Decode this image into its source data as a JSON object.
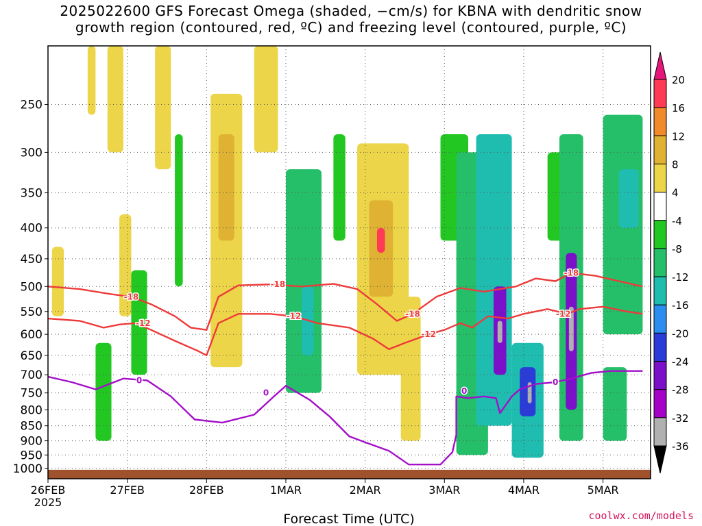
{
  "title_line1": "2025022600 GFS Forecast Omega (shaded, −cm/s) for KBNA with dendritic snow",
  "title_line2": "growth region (contoured, red, ºC) and freezing level (contoured, purple, ºC)",
  "credit": "coolwx.com/models",
  "chart_data": {
    "type": "heatmap",
    "title": "2025022600 GFS Forecast Omega (shaded, −cm/s) for KBNA with dendritic snow growth region (contoured, red, ºC) and freezing level (contoured, purple, ºC)",
    "xlabel": "Forecast Time (UTC)",
    "ylabel": "",
    "x_unit": "days since 26FEB 2025 00Z",
    "xlim": [
      0,
      7.6
    ],
    "x_ticks": [
      {
        "x": 0,
        "label": "26FEB",
        "sublabel": "2025"
      },
      {
        "x": 1,
        "label": "27FEB"
      },
      {
        "x": 2,
        "label": "28FEB"
      },
      {
        "x": 3,
        "label": "1MAR"
      },
      {
        "x": 4,
        "label": "2MAR"
      },
      {
        "x": 5,
        "label": "3MAR"
      },
      {
        "x": 6,
        "label": "4MAR"
      },
      {
        "x": 7,
        "label": "5MAR"
      }
    ],
    "y_scale": "log-pressure",
    "ylim": [
      1040,
      200
    ],
    "y_ticks": [
      250,
      300,
      350,
      400,
      450,
      500,
      550,
      600,
      650,
      700,
      750,
      800,
      850,
      900,
      950,
      1000
    ],
    "grid": true,
    "colorbar": {
      "levels": [
        20,
        16,
        12,
        8,
        4,
        -4,
        -8,
        -12,
        -16,
        -20,
        -24,
        -28,
        -32,
        -36
      ],
      "colors": [
        "#ff3a55",
        "#f08a2a",
        "#e0b233",
        "#ecd548",
        "#ffffff",
        "#22c722",
        "#25bf6a",
        "#1fbdb0",
        "#2a8ef0",
        "#2a3bd8",
        "#7a10c8",
        "#a400c8",
        "#b0b0b0"
      ],
      "over_color": "#e6167a",
      "under_color": "#000000"
    },
    "shaded_regions": [
      {
        "x": [
          0.05,
          0.2
        ],
        "p": [
          430,
          560
        ],
        "value": 6
      },
      {
        "x": [
          0.5,
          0.6
        ],
        "p": [
          200,
          260
        ],
        "value": 5
      },
      {
        "x": [
          0.75,
          0.95
        ],
        "p": [
          200,
          300
        ],
        "value": 5
      },
      {
        "x": [
          0.6,
          0.8
        ],
        "p": [
          620,
          900
        ],
        "value": -6
      },
      {
        "x": [
          0.9,
          1.05
        ],
        "p": [
          380,
          560
        ],
        "value": 6
      },
      {
        "x": [
          1.05,
          1.25
        ],
        "p": [
          470,
          700
        ],
        "value": -7
      },
      {
        "x": [
          1.35,
          1.55
        ],
        "p": [
          200,
          320
        ],
        "value": 5
      },
      {
        "x": [
          1.6,
          1.7
        ],
        "p": [
          280,
          500
        ],
        "value": -6
      },
      {
        "x": [
          2.05,
          2.45
        ],
        "p": [
          240,
          680
        ],
        "value": 6
      },
      {
        "x": [
          2.15,
          2.35
        ],
        "p": [
          280,
          420
        ],
        "value": 10
      },
      {
        "x": [
          2.6,
          2.9
        ],
        "p": [
          200,
          300
        ],
        "value": 5
      },
      {
        "x": [
          3.0,
          3.45
        ],
        "p": [
          320,
          750
        ],
        "value": -8
      },
      {
        "x": [
          3.2,
          3.35
        ],
        "p": [
          500,
          650
        ],
        "value": -13
      },
      {
        "x": [
          3.6,
          3.75
        ],
        "p": [
          280,
          420
        ],
        "value": -6
      },
      {
        "x": [
          3.9,
          4.55
        ],
        "p": [
          290,
          700
        ],
        "value": 6
      },
      {
        "x": [
          4.05,
          4.35
        ],
        "p": [
          360,
          520
        ],
        "value": 10
      },
      {
        "x": [
          4.15,
          4.25
        ],
        "p": [
          400,
          440
        ],
        "value": 18
      },
      {
        "x": [
          4.45,
          4.7
        ],
        "p": [
          520,
          900
        ],
        "value": 5
      },
      {
        "x": [
          4.95,
          5.3
        ],
        "p": [
          280,
          420
        ],
        "value": -7
      },
      {
        "x": [
          5.15,
          5.55
        ],
        "p": [
          300,
          950
        ],
        "value": -8
      },
      {
        "x": [
          5.4,
          5.85
        ],
        "p": [
          280,
          850
        ],
        "value": -14
      },
      {
        "x": [
          5.62,
          5.78
        ],
        "p": [
          500,
          700
        ],
        "value": -25
      },
      {
        "x": [
          5.67,
          5.73
        ],
        "p": [
          570,
          620
        ],
        "value": -33
      },
      {
        "x": [
          5.85,
          6.25
        ],
        "p": [
          620,
          960
        ],
        "value": -12
      },
      {
        "x": [
          5.95,
          6.15
        ],
        "p": [
          680,
          820
        ],
        "value": -22
      },
      {
        "x": [
          6.05,
          6.1
        ],
        "p": [
          720,
          780
        ],
        "value": -33
      },
      {
        "x": [
          6.3,
          6.55
        ],
        "p": [
          300,
          420
        ],
        "value": -7
      },
      {
        "x": [
          6.45,
          6.75
        ],
        "p": [
          280,
          900
        ],
        "value": -10
      },
      {
        "x": [
          6.53,
          6.67
        ],
        "p": [
          440,
          800
        ],
        "value": -26
      },
      {
        "x": [
          6.57,
          6.63
        ],
        "p": [
          540,
          640
        ],
        "value": -33
      },
      {
        "x": [
          7.0,
          7.5
        ],
        "p": [
          260,
          600
        ],
        "value": -9
      },
      {
        "x": [
          7.2,
          7.45
        ],
        "p": [
          320,
          400
        ],
        "value": -15
      },
      {
        "x": [
          7.0,
          7.3
        ],
        "p": [
          680,
          900
        ],
        "value": -8
      }
    ],
    "contours": [
      {
        "name": "-18",
        "color": "#ee3a3a",
        "points": [
          [
            0,
            500
          ],
          [
            0.4,
            505
          ],
          [
            0.8,
            515
          ],
          [
            1.05,
            520
          ],
          [
            1.3,
            535
          ],
          [
            1.6,
            560
          ],
          [
            1.8,
            585
          ],
          [
            2.0,
            590
          ],
          [
            2.15,
            520
          ],
          [
            2.4,
            498
          ],
          [
            2.8,
            496
          ],
          [
            3.2,
            500
          ],
          [
            3.6,
            495
          ],
          [
            3.9,
            505
          ],
          [
            4.15,
            535
          ],
          [
            4.4,
            570
          ],
          [
            4.6,
            555
          ],
          [
            4.9,
            520
          ],
          [
            5.2,
            503
          ],
          [
            5.5,
            510
          ],
          [
            5.7,
            505
          ],
          [
            5.9,
            500
          ],
          [
            6.15,
            485
          ],
          [
            6.4,
            490
          ],
          [
            6.6,
            475
          ],
          [
            6.9,
            480
          ],
          [
            7.2,
            490
          ],
          [
            7.5,
            500
          ]
        ],
        "labels": [
          [
            1.05,
            520
          ],
          [
            2.9,
            496
          ],
          [
            4.6,
            555
          ],
          [
            6.6,
            475
          ]
        ]
      },
      {
        "name": "-12",
        "color": "#ee3a3a",
        "points": [
          [
            0,
            565
          ],
          [
            0.4,
            570
          ],
          [
            0.7,
            585
          ],
          [
            0.9,
            578
          ],
          [
            1.1,
            575
          ],
          [
            1.3,
            590
          ],
          [
            1.6,
            615
          ],
          [
            1.9,
            640
          ],
          [
            2.0,
            650
          ],
          [
            2.15,
            575
          ],
          [
            2.4,
            555
          ],
          [
            2.8,
            555
          ],
          [
            3.1,
            560
          ],
          [
            3.4,
            575
          ],
          [
            3.8,
            585
          ],
          [
            4.1,
            610
          ],
          [
            4.3,
            635
          ],
          [
            4.5,
            620
          ],
          [
            4.8,
            600
          ],
          [
            5.0,
            590
          ],
          [
            5.2,
            575
          ],
          [
            5.35,
            585
          ],
          [
            5.55,
            560
          ],
          [
            5.8,
            565
          ],
          [
            6.0,
            555
          ],
          [
            6.3,
            545
          ],
          [
            6.55,
            555
          ],
          [
            6.7,
            545
          ],
          [
            7.0,
            540
          ],
          [
            7.3,
            550
          ],
          [
            7.5,
            555
          ]
        ],
        "labels": [
          [
            1.2,
            575
          ],
          [
            3.1,
            560
          ],
          [
            4.8,
            600
          ],
          [
            6.5,
            555
          ]
        ]
      },
      {
        "name": "0",
        "color": "#a40fc8",
        "points": [
          [
            0,
            705
          ],
          [
            0.3,
            720
          ],
          [
            0.6,
            740
          ],
          [
            0.95,
            710
          ],
          [
            1.25,
            715
          ],
          [
            1.55,
            760
          ],
          [
            1.85,
            830
          ],
          [
            2.2,
            840
          ],
          [
            2.6,
            815
          ],
          [
            2.85,
            760
          ],
          [
            3.0,
            730
          ],
          [
            3.3,
            770
          ],
          [
            3.55,
            820
          ],
          [
            3.8,
            885
          ],
          [
            4.0,
            905
          ],
          [
            4.3,
            935
          ],
          [
            4.55,
            985
          ],
          [
            4.95,
            985
          ],
          [
            5.1,
            940
          ],
          [
            5.15,
            880
          ],
          [
            5.15,
            760
          ],
          [
            5.3,
            765
          ],
          [
            5.5,
            760
          ],
          [
            5.65,
            765
          ],
          [
            5.7,
            810
          ],
          [
            5.85,
            760
          ],
          [
            5.95,
            740
          ],
          [
            6.15,
            725
          ],
          [
            6.4,
            720
          ],
          [
            6.6,
            710
          ],
          [
            6.85,
            695
          ],
          [
            7.1,
            690
          ],
          [
            7.5,
            690
          ]
        ],
        "labels": [
          [
            1.15,
            715
          ],
          [
            2.75,
            750
          ],
          [
            5.25,
            745
          ],
          [
            6.4,
            720
          ]
        ]
      }
    ],
    "terrain": {
      "color": "#a0522d",
      "p_top": 1005
    }
  }
}
